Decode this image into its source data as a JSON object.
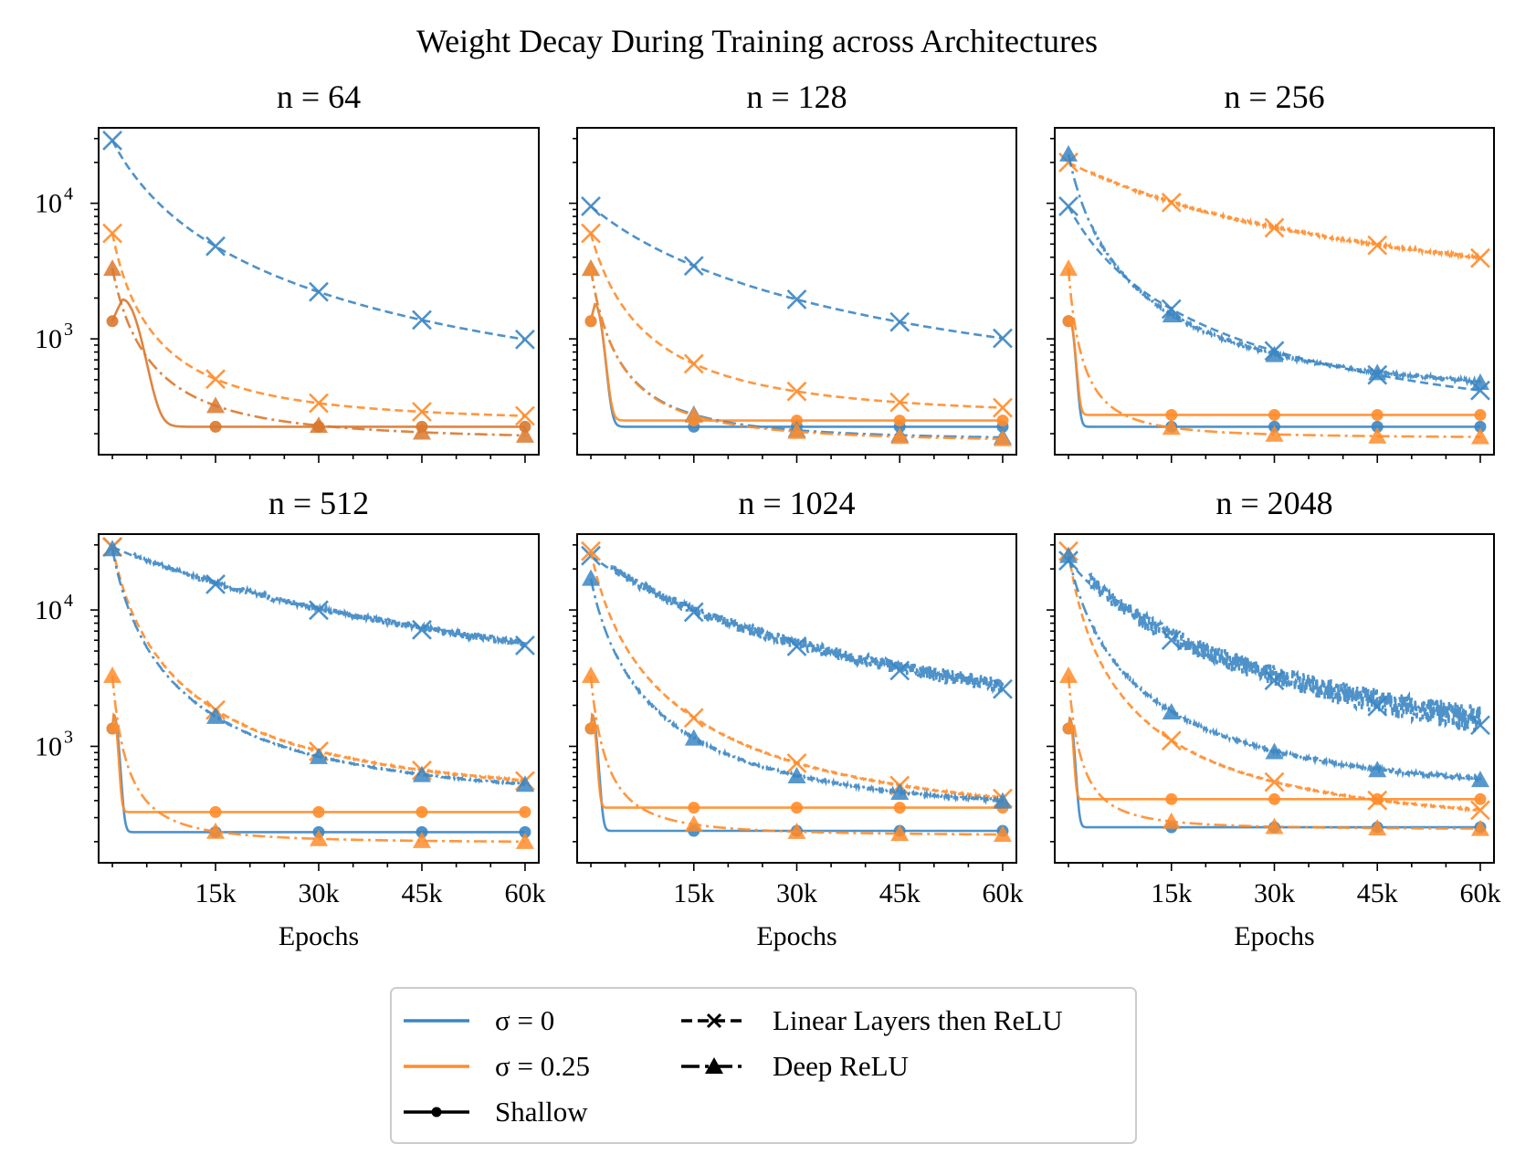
{
  "colors": {
    "sigma0": "#3b86c3",
    "sigma025": "#ff8c2a",
    "overlap": "#d9782e",
    "black": "#000000"
  },
  "chart_data": {
    "type": "line",
    "title": "Weight Decay During Training across Architectures",
    "xlabel": "Epochs",
    "ylabel": "",
    "yscale": "log",
    "xlim": [
      -2000,
      62000
    ],
    "ylim": [
      140,
      36000
    ],
    "xtick_values": [
      15000,
      30000,
      45000,
      60000
    ],
    "xtick_labels": [
      "15k",
      "30k",
      "45k",
      "60k"
    ],
    "ytick_labels": [
      {
        "base": "10",
        "exp": "3"
      },
      {
        "base": "10",
        "exp": "4"
      }
    ],
    "ytick_values": [
      1000,
      10000
    ],
    "legend": {
      "position": "bottom-center",
      "entries": [
        {
          "label": "σ = 0",
          "kind": "color",
          "color": "sigma0"
        },
        {
          "label": "σ = 0.25",
          "kind": "color",
          "color": "sigma025"
        },
        {
          "label": "Shallow",
          "kind": "style",
          "marker": "circle",
          "dash": "solid"
        },
        {
          "label": "Linear Layers then ReLU",
          "kind": "style",
          "marker": "x",
          "dash": "dashed"
        },
        {
          "label": "Deep ReLU",
          "kind": "style",
          "marker": "triangle",
          "dash": "dashdot"
        }
      ]
    },
    "panels": [
      {
        "title": "n = 64",
        "series": [
          {
            "name": "Shallow σ=0.25 (overlapping σ=0)",
            "color": "overlap",
            "arch": "shallow",
            "start": 1350,
            "peak": 1950,
            "peak_x": 1500,
            "plateau": 225,
            "tau": 3000,
            "noise": 0
          },
          {
            "name": "Linear Layers then ReLU σ=0",
            "color": "sigma0",
            "arch": "linear",
            "start": 29000,
            "plateau": 215,
            "tau": 7000,
            "noise": 0
          },
          {
            "name": "Linear Layers then ReLU σ=0.25",
            "color": "sigma025",
            "arch": "linear",
            "start": 6000,
            "plateau": 235,
            "tau": 2600,
            "noise": 0
          },
          {
            "name": "Deep ReLU σ=0.25 (overlapping σ=0)",
            "color": "overlap",
            "arch": "deep",
            "start": 3300,
            "plateau": 175,
            "tau": 2600,
            "noise": 0
          }
        ]
      },
      {
        "title": "n = 128",
        "series": [
          {
            "name": "Shallow σ=0",
            "color": "sigma0",
            "arch": "shallow",
            "start": 1350,
            "peak": 1800,
            "peak_x": 600,
            "plateau": 225,
            "tau": 1400,
            "noise": 0
          },
          {
            "name": "Shallow σ=0.25",
            "color": "sigma025",
            "arch": "shallow",
            "start": 1350,
            "peak": 1800,
            "peak_x": 600,
            "plateau": 250,
            "tau": 1400,
            "noise": 0
          },
          {
            "name": "Linear Layers then ReLU σ=0",
            "color": "sigma0",
            "arch": "linear",
            "start": 9500,
            "plateau": 245,
            "tau": 16000,
            "noise": 0
          },
          {
            "name": "Linear Layers then ReLU σ=0.25",
            "color": "sigma025",
            "arch": "linear",
            "start": 6000,
            "plateau": 255,
            "tau": 3500,
            "noise": 0
          },
          {
            "name": "Deep ReLU σ=0",
            "color": "sigma0",
            "arch": "deep",
            "start": 3300,
            "plateau": 175,
            "tau": 2000,
            "noise": 0
          },
          {
            "name": "Deep ReLU σ=0.25",
            "color": "sigma025",
            "arch": "deep",
            "start": 3300,
            "plateau": 170,
            "tau": 2000,
            "noise": 0
          }
        ]
      },
      {
        "title": "n = 256",
        "series": [
          {
            "name": "Shallow σ=0",
            "color": "sigma0",
            "arch": "shallow",
            "start": 1350,
            "peak": 1400,
            "peak_x": 200,
            "plateau": 225,
            "tau": 900,
            "noise": 0
          },
          {
            "name": "Shallow σ=0.25",
            "color": "sigma025",
            "arch": "shallow",
            "start": 1350,
            "peak": 1400,
            "peak_x": 200,
            "plateau": 275,
            "tau": 900,
            "noise": 0
          },
          {
            "name": "Linear Layers then ReLU σ=0",
            "color": "sigma0",
            "arch": "linear",
            "start": 9500,
            "plateau": 165,
            "tau": 7000,
            "noise": 0
          },
          {
            "name": "Linear Layers then ReLU σ=0.25",
            "color": "sigma025",
            "arch": "linear",
            "start": 20000,
            "plateau": 1300,
            "tau": 25000,
            "noise": 0.02
          },
          {
            "name": "Deep ReLU σ=0",
            "color": "sigma0",
            "arch": "deep",
            "start": 23000,
            "plateau": 320,
            "tau": 2800,
            "noise": 0.03
          },
          {
            "name": "Deep ReLU σ=0.25",
            "color": "sigma025",
            "arch": "deep",
            "start": 3300,
            "plateau": 185,
            "tau": 1000,
            "noise": 0
          }
        ]
      },
      {
        "title": "n = 512",
        "series": [
          {
            "name": "Shallow σ=0",
            "color": "sigma0",
            "arch": "shallow",
            "start": 1350,
            "peak": 1700,
            "peak_x": 200,
            "plateau": 235,
            "tau": 900,
            "noise": 0
          },
          {
            "name": "Shallow σ=0.25",
            "color": "sigma025",
            "arch": "shallow",
            "start": 1350,
            "peak": 1700,
            "peak_x": 200,
            "plateau": 330,
            "tau": 700,
            "noise": 0
          },
          {
            "name": "Linear Layers then ReLU σ=0",
            "color": "sigma0",
            "arch": "linear",
            "start": 29000,
            "plateau": 600,
            "tau": 30000,
            "noise": 0.06
          },
          {
            "name": "Linear Layers then ReLU σ=0.25",
            "color": "sigma025",
            "arch": "linear",
            "start": 29000,
            "plateau": 360,
            "tau": 2800,
            "noise": 0.01
          },
          {
            "name": "Deep ReLU σ=0",
            "color": "sigma0",
            "arch": "deep",
            "start": 28000,
            "plateau": 355,
            "tau": 2600,
            "noise": 0.01
          },
          {
            "name": "Deep ReLU σ=0.25",
            "color": "sigma025",
            "arch": "deep",
            "start": 3300,
            "plateau": 195,
            "tau": 1100,
            "noise": 0
          }
        ]
      },
      {
        "title": "n = 1024",
        "series": [
          {
            "name": "Shallow σ=0",
            "color": "sigma0",
            "arch": "shallow",
            "start": 1350,
            "peak": 1700,
            "peak_x": 200,
            "plateau": 240,
            "tau": 900,
            "noise": 0
          },
          {
            "name": "Shallow σ=0.25",
            "color": "sigma025",
            "arch": "shallow",
            "start": 1350,
            "peak": 1700,
            "peak_x": 200,
            "plateau": 355,
            "tau": 700,
            "noise": 0
          },
          {
            "name": "Linear Layers then ReLU σ=0",
            "color": "sigma0",
            "arch": "linear",
            "start": 25000,
            "plateau": 260,
            "tau": 18000,
            "noise": 0.12
          },
          {
            "name": "Linear Layers then ReLU σ=0.25",
            "color": "sigma025",
            "arch": "linear",
            "start": 27000,
            "plateau": 230,
            "tau": 2800,
            "noise": 0.01
          },
          {
            "name": "Deep ReLU σ=0",
            "color": "sigma0",
            "arch": "deep",
            "start": 17000,
            "plateau": 280,
            "tau": 2800,
            "noise": 0.02
          },
          {
            "name": "Deep ReLU σ=0.25",
            "color": "sigma025",
            "arch": "deep",
            "start": 3300,
            "plateau": 220,
            "tau": 1200,
            "noise": 0
          }
        ]
      },
      {
        "title": "n = 2048",
        "series": [
          {
            "name": "Shallow σ=0",
            "color": "sigma0",
            "arch": "shallow",
            "start": 1350,
            "peak": 1600,
            "peak_x": 200,
            "plateau": 255,
            "tau": 800,
            "noise": 0
          },
          {
            "name": "Shallow σ=0.25",
            "color": "sigma025",
            "arch": "shallow",
            "start": 1350,
            "peak": 1600,
            "peak_x": 200,
            "plateau": 410,
            "tau": 600,
            "noise": 0
          },
          {
            "name": "Linear Layers then ReLU σ=0",
            "color": "sigma0",
            "arch": "linear",
            "start": 23000,
            "plateau": 280,
            "tau": 11000,
            "noise": 0.22
          },
          {
            "name": "Linear Layers then ReLU σ=0.25",
            "color": "sigma025",
            "arch": "linear",
            "start": 27000,
            "plateau": 230,
            "tau": 2000,
            "noise": 0.01
          },
          {
            "name": "Deep ReLU σ=0",
            "color": "sigma0",
            "arch": "deep",
            "start": 25000,
            "plateau": 380,
            "tau": 3000,
            "noise": 0.03
          },
          {
            "name": "Deep ReLU σ=0.25",
            "color": "sigma025",
            "arch": "deep",
            "start": 3300,
            "plateau": 245,
            "tau": 1000,
            "noise": 0
          }
        ]
      }
    ]
  }
}
